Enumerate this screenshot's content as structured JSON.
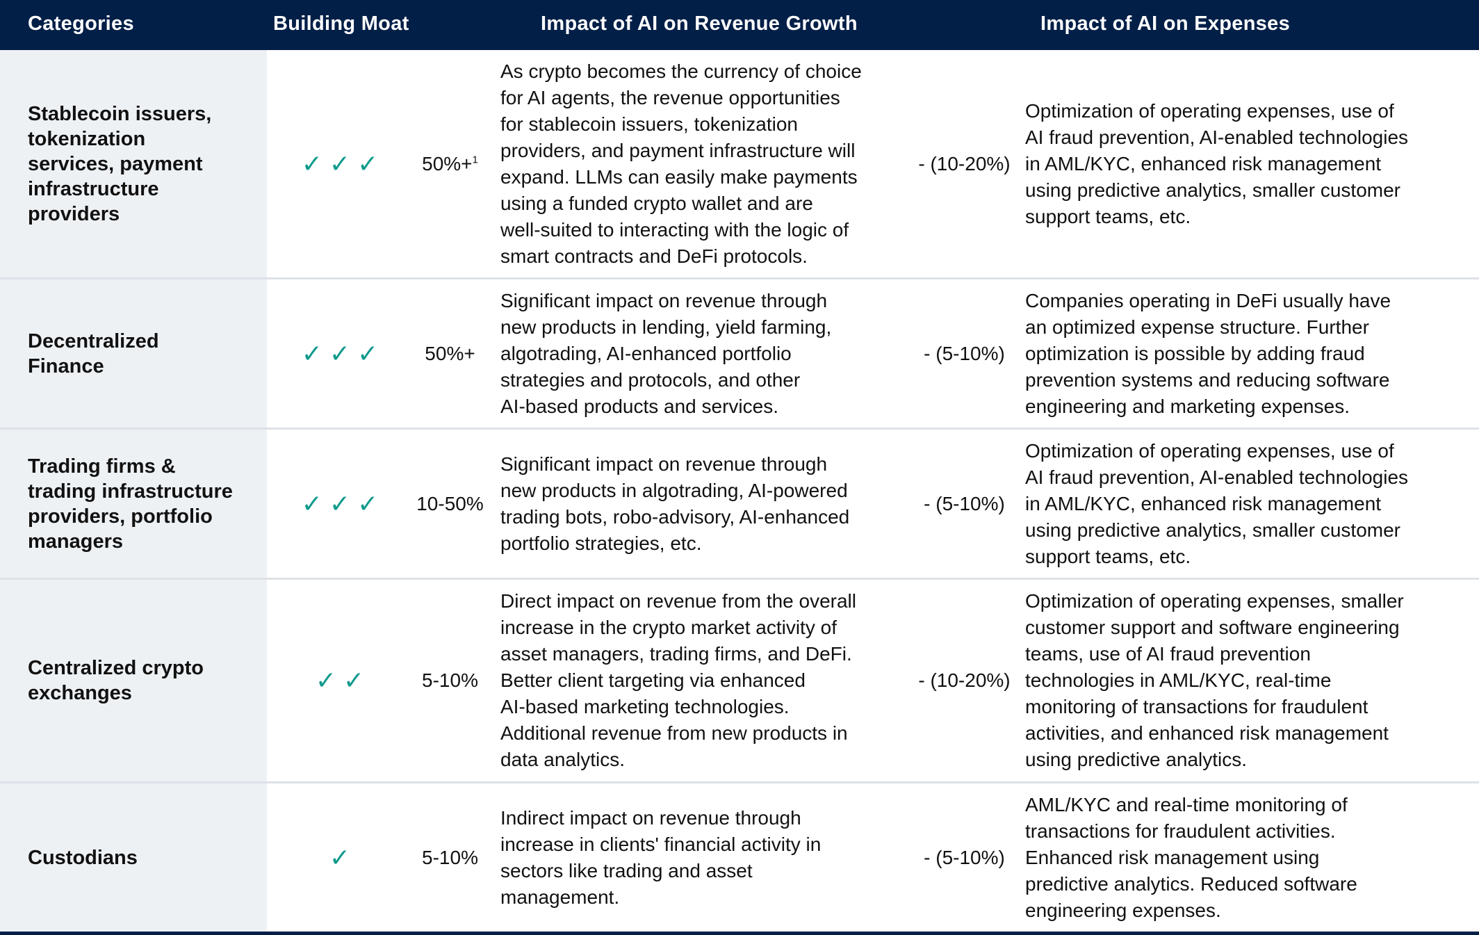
{
  "header": {
    "categories": "Categories",
    "building_moat": "Building Moat",
    "revenue": "Impact of AI on Revenue Growth",
    "expenses": "Impact of AI on Expenses"
  },
  "colors": {
    "header_bg": "#021f47",
    "category_bg": "#eef1f4",
    "check": "#0f9a8c"
  },
  "check_icon": "checkmark-icon",
  "rows": [
    {
      "category": [
        "Stablecoin issuers,",
        "tokenization",
        "services, payment",
        "infrastructure",
        "providers"
      ],
      "moat_checks": 3,
      "moat_glyphs": "✓✓✓",
      "revenue_pct": "50%+",
      "revenue_footnote": "1",
      "revenue_text": [
        "As crypto becomes the currency of choice",
        "for AI agents, the revenue opportunities",
        "for stablecoin issuers, tokenization",
        "providers, and payment infrastructure will",
        "expand. LLMs can easily make payments",
        "using a funded crypto wallet and are",
        "well-suited to interacting with the logic of",
        "smart contracts and DeFi protocols."
      ],
      "expense_pct": "- (10-20%)",
      "expense_text": [
        "Optimization of operating expenses, use of",
        "AI fraud prevention, AI-enabled technologies",
        "in AML/KYC, enhanced risk management",
        "using predictive analytics, smaller customer",
        "support teams, etc."
      ]
    },
    {
      "category": [
        "Decentralized",
        "Finance"
      ],
      "moat_checks": 3,
      "moat_glyphs": "✓✓✓",
      "revenue_pct": "50%+",
      "revenue_text": [
        "Significant impact on revenue through",
        "new products in lending, yield farming,",
        "algotrading, AI-enhanced portfolio",
        "strategies and protocols, and other",
        "AI-based products and services."
      ],
      "expense_pct": "- (5-10%)",
      "expense_text": [
        "Companies operating in DeFi usually have",
        "an optimized expense structure. Further",
        "optimization is possible by adding fraud",
        "prevention systems and reducing software",
        "engineering and marketing expenses."
      ]
    },
    {
      "category": [
        "Trading firms &",
        "trading infrastructure",
        "providers, portfolio",
        "managers"
      ],
      "moat_checks": 3,
      "moat_glyphs": "✓✓✓",
      "revenue_pct": "10-50%",
      "revenue_text": [
        "Significant impact on revenue through",
        "new products in algotrading, AI-powered",
        "trading bots, robo-advisory, AI-enhanced",
        "portfolio strategies, etc."
      ],
      "expense_pct": "- (5-10%)",
      "expense_text": [
        "Optimization of operating expenses, use of",
        "AI fraud prevention, AI-enabled technologies",
        "in AML/KYC, enhanced risk management",
        "using predictive analytics, smaller customer",
        "support teams, etc."
      ]
    },
    {
      "category": [
        "Centralized crypto",
        "exchanges"
      ],
      "moat_checks": 2,
      "moat_glyphs": "✓✓",
      "revenue_pct": "5-10%",
      "revenue_text": [
        "Direct impact on revenue from the overall",
        "increase in the crypto market activity of",
        "asset managers, trading firms, and DeFi.",
        "Better client targeting via enhanced",
        "AI-based marketing technologies.",
        "Additional revenue from new products in",
        "data analytics."
      ],
      "expense_pct": "- (10-20%)",
      "expense_text": [
        "Optimization of operating expenses, smaller",
        "customer support and software engineering",
        "teams, use of AI fraud prevention",
        "technologies in AML/KYC, real-time",
        "monitoring of transactions for fraudulent",
        "activities, and enhanced risk management",
        "using predictive analytics."
      ]
    },
    {
      "category": [
        "Custodians"
      ],
      "moat_checks": 1,
      "moat_glyphs": "✓",
      "revenue_pct": "5-10%",
      "revenue_text": [
        "Indirect impact on revenue through",
        "increase in clients' financial activity in",
        "sectors like trading and asset",
        "management."
      ],
      "expense_pct": "- (5-10%)",
      "expense_text": [
        "AML/KYC and real-time monitoring of",
        "transactions for fraudulent activities.",
        "Enhanced risk management using",
        "predictive analytics. Reduced software",
        "engineering expenses."
      ]
    }
  ]
}
